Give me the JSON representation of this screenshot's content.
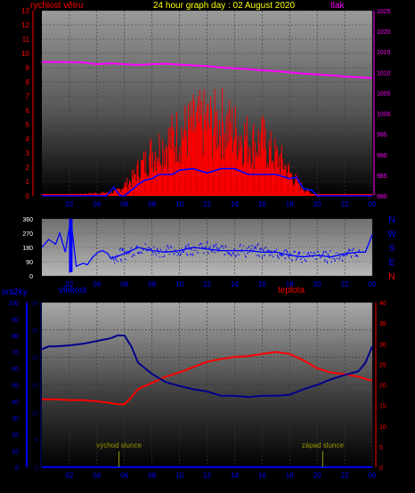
{
  "header": {
    "title": "24 hour graph day : 02 August 2020",
    "left_label": "rychlost větru",
    "right_label": "tlak"
  },
  "colors": {
    "wind": "#ff0000",
    "pressure": "#ff00ff",
    "gust_avg": "#0000ff",
    "direction": "#0000ff",
    "humidity": "#00008b",
    "temperature": "#ff0000",
    "rain": "#0000ff",
    "sun_markers": "#999900",
    "axis_left": "#ff0000",
    "axis_right": "#ff00ff",
    "axis_humidity": "#00008b",
    "axis_rain": "#0000ff",
    "title": "#ffff00"
  },
  "chart_data": [
    {
      "type": "line",
      "x_ticks": [
        "02",
        "04",
        "06",
        "08",
        "10",
        "12",
        "14",
        "16",
        "18",
        "20",
        "22",
        "00"
      ],
      "y_left_ticks": [
        "0",
        "1",
        "2",
        "3",
        "4",
        "5",
        "6",
        "7",
        "8",
        "9",
        "10",
        "11",
        "12",
        "13"
      ],
      "y_right_ticks": [
        "980",
        "985",
        "990",
        "995",
        "1000",
        "1005",
        "1010",
        "1015",
        "1020",
        "1025"
      ],
      "y_left_range": [
        0,
        13
      ],
      "y_right_range": [
        980,
        1025
      ],
      "x_range": [
        0,
        24
      ],
      "series": [
        {
          "name": "rychlost větru",
          "axis": "left",
          "x": [
            0,
            5,
            5.5,
            6,
            6.5,
            7,
            7.5,
            8,
            8.5,
            9,
            9.5,
            10,
            10.5,
            11,
            11.5,
            12,
            12.5,
            13,
            13.5,
            14,
            14.5,
            15,
            15.5,
            16,
            16.5,
            17,
            17.5,
            18,
            18.5,
            19,
            19.5,
            20,
            24
          ],
          "values": [
            0,
            0.3,
            0.5,
            1,
            1.5,
            2.5,
            3.2,
            4.2,
            4.6,
            5,
            5.5,
            6,
            6.2,
            6.6,
            6.8,
            7,
            6.8,
            7.2,
            6.6,
            6.2,
            5.8,
            5.4,
            5,
            5.4,
            4.4,
            3.8,
            3.2,
            2.2,
            1.4,
            0.7,
            0.3,
            0,
            0
          ]
        },
        {
          "name": "",
          "axis": "left",
          "x": [
            0,
            4.7,
            5.2,
            5.7,
            6,
            7,
            7.5,
            8,
            8.5,
            9,
            9.5,
            10,
            11,
            12,
            13,
            14,
            15,
            16,
            17,
            18,
            18.5,
            19,
            19.6,
            20,
            20.5,
            24
          ],
          "values": [
            0,
            0,
            0.6,
            0,
            0,
            0.8,
            1.1,
            1.2,
            1.5,
            1.5,
            1.5,
            1.8,
            1.9,
            1.6,
            1.9,
            1.9,
            1.5,
            1.5,
            1.5,
            1.2,
            1.3,
            0.5,
            0.4,
            0,
            0,
            0
          ]
        },
        {
          "name": "tlak",
          "axis": "right",
          "x": [
            0,
            1,
            2,
            3,
            4,
            5,
            6,
            7,
            8,
            9,
            10,
            11,
            12,
            13,
            14,
            15,
            16,
            17,
            18,
            19,
            20,
            21,
            22,
            23,
            24
          ],
          "values": [
            1012.5,
            1012.5,
            1012.5,
            1012.4,
            1012,
            1012.2,
            1012,
            1011.8,
            1012,
            1012.1,
            1011.9,
            1011.7,
            1011.5,
            1011.2,
            1011,
            1010.8,
            1010.5,
            1010.3,
            1010,
            1009.7,
            1009.5,
            1009.3,
            1009,
            1008.8,
            1008.6
          ]
        }
      ]
    },
    {
      "type": "line",
      "x_ticks": [
        "02",
        "04",
        "06",
        "08",
        "10",
        "12",
        "14",
        "16",
        "18",
        "20",
        "22",
        "00"
      ],
      "y_ticks": [
        "360",
        "270",
        "180",
        "90",
        "0"
      ],
      "y_right_labels": [
        "N",
        "W",
        "S",
        "E",
        "N"
      ],
      "y_range": [
        0,
        360
      ],
      "x_range": [
        0,
        24
      ],
      "series": [
        {
          "name": "",
          "axis": "left",
          "x": [
            0,
            0.5,
            1,
            1.3,
            1.7,
            2.1,
            2.5,
            3,
            3.3,
            3.7,
            4.1,
            4.4,
            4.8,
            5,
            6,
            7,
            8,
            9,
            10,
            11,
            12,
            13,
            14,
            15,
            16,
            17,
            18,
            19,
            20,
            21,
            22,
            23,
            23.5,
            24
          ],
          "values": [
            180,
            230,
            200,
            270,
            150,
            360,
            60,
            80,
            70,
            120,
            150,
            160,
            140,
            110,
            140,
            180,
            160,
            150,
            160,
            180,
            170,
            160,
            160,
            160,
            150,
            150,
            130,
            120,
            130,
            120,
            140,
            150,
            150,
            260
          ]
        }
      ]
    },
    {
      "type": "line",
      "x_ticks": [
        "02",
        "04",
        "06",
        "08",
        "10",
        "12",
        "14",
        "16",
        "18",
        "20",
        "22",
        "00"
      ],
      "y_rain_ticks": [
        "0",
        "10",
        "20",
        "30",
        "40",
        "50",
        "60",
        "70",
        "80",
        "90",
        "100"
      ],
      "y_humidity_ticks": [
        "0",
        "5",
        "10",
        "15",
        "20",
        "25",
        "30"
      ],
      "y_temp_ticks": [
        "0",
        "5",
        "10",
        "15",
        "20",
        "25",
        "30",
        "35",
        "40"
      ],
      "labels": {
        "rain": "srážky",
        "humidity": "vlhkost",
        "temperature": "teplota"
      },
      "annotations": [
        {
          "text": "východ slunce",
          "x": 5.6
        },
        {
          "text": "západ slunce",
          "x": 20.4
        }
      ],
      "x_range": [
        0,
        24
      ],
      "series": [
        {
          "name": "vlhkost",
          "axis": "humidity",
          "x": [
            0,
            0.5,
            1,
            2,
            3,
            4,
            5,
            5.5,
            6,
            6.5,
            7,
            8,
            9,
            10,
            11,
            12,
            13,
            14,
            15,
            16,
            17,
            18,
            19,
            20,
            21,
            22,
            23,
            23.5,
            24
          ],
          "values": [
            21.5,
            22,
            22,
            22.2,
            22.5,
            23,
            23.5,
            24,
            24,
            22,
            19,
            17,
            15.5,
            14.8,
            14.2,
            13.8,
            13,
            13,
            12.8,
            13,
            13,
            13.2,
            14.2,
            15,
            16,
            16.8,
            17.5,
            19,
            22
          ]
        },
        {
          "name": "teplota",
          "axis": "temperature",
          "x": [
            0,
            1,
            2,
            3,
            4,
            5,
            5.5,
            6,
            6.5,
            7,
            8,
            9,
            10,
            11,
            12,
            13,
            14,
            15,
            16,
            17,
            18,
            19,
            20,
            21,
            22,
            23,
            24
          ],
          "values": [
            16.5,
            16.5,
            16.3,
            16.3,
            16,
            15.6,
            15.3,
            15.3,
            17,
            19,
            20.5,
            22,
            23,
            24.3,
            25.6,
            26.3,
            26.8,
            27,
            27.5,
            28,
            27.5,
            26,
            24,
            23,
            22.6,
            22,
            21
          ]
        },
        {
          "name": "srážky",
          "axis": "rain",
          "x": [
            0,
            24
          ],
          "values": [
            0,
            0
          ]
        }
      ]
    }
  ]
}
